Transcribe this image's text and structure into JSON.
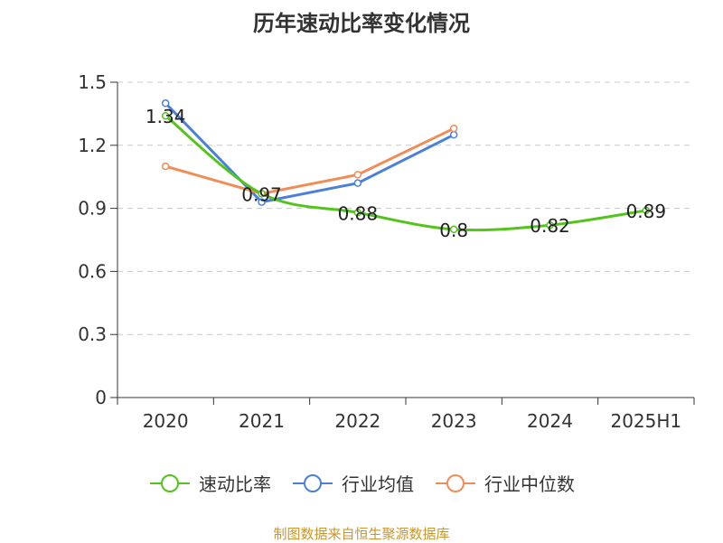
{
  "chart_data": {
    "type": "line",
    "title": "历年速动比率变化情况",
    "categories": [
      "2020",
      "2021",
      "2022",
      "2023",
      "2024",
      "2025H1"
    ],
    "y_ticks": [
      "0",
      "0.3",
      "0.6",
      "0.9",
      "1.2",
      "1.5"
    ],
    "ylim": [
      0,
      1.5
    ],
    "grid": true,
    "legend_position": "bottom",
    "series": [
      {
        "name": "速动比率",
        "color": "#52c41a",
        "values": [
          1.34,
          0.97,
          0.88,
          0.8,
          0.82,
          0.89
        ],
        "labels": [
          "1.34",
          "0.97",
          "0.88",
          "0.8",
          "0.82",
          "0.89"
        ]
      },
      {
        "name": "行业均值",
        "color": "#4a7fdc",
        "values": [
          1.4,
          0.93,
          1.02,
          1.25,
          null,
          null
        ]
      },
      {
        "name": "行业中位数",
        "color": "#f08c56",
        "values": [
          1.1,
          0.97,
          1.06,
          1.28,
          null,
          null
        ]
      }
    ]
  },
  "source": "制图数据来自恒生聚源数据库"
}
